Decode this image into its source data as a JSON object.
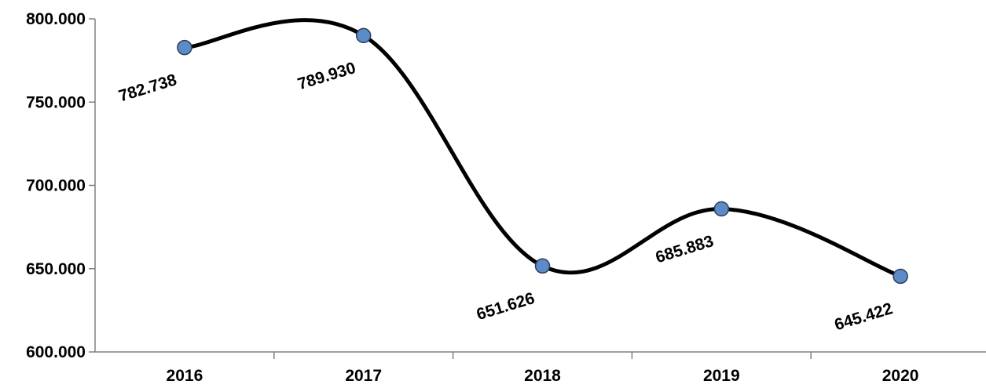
{
  "chart_data": {
    "type": "line",
    "smooth": true,
    "title": "",
    "xlabel": "",
    "ylabel": "",
    "categories": [
      "2016",
      "2017",
      "2018",
      "2019",
      "2020"
    ],
    "series": [
      {
        "values": [
          782738,
          789930,
          651626,
          685883,
          645422
        ],
        "labels": [
          "782.738",
          "789.930",
          "651.626",
          "685.883",
          "645.422"
        ]
      }
    ],
    "ylim": [
      600000,
      800000
    ],
    "yticks": [
      600000,
      650000,
      700000,
      750000,
      800000
    ],
    "ytick_labels": [
      "600.000",
      "650.000",
      "700.000",
      "750.000",
      "800.000"
    ],
    "grid": false,
    "legend": "none",
    "colors": {
      "line": "#000000",
      "marker_fill": "#5b8cc8",
      "marker_stroke": "#2a3d57",
      "axis": "#808080"
    }
  }
}
